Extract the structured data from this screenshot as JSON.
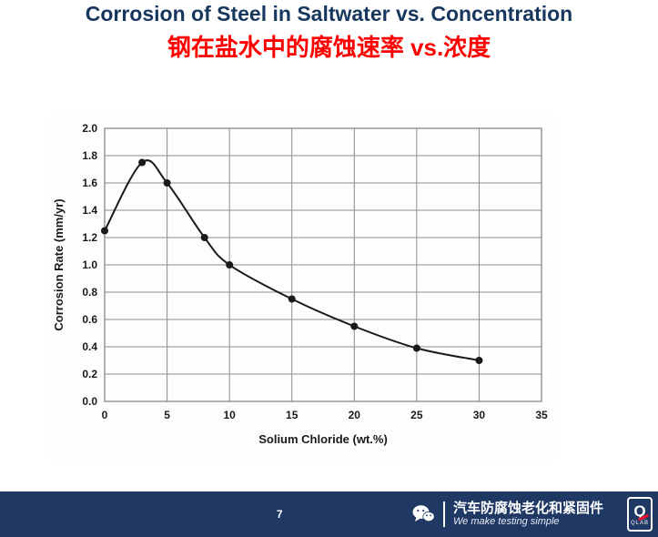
{
  "slide": {
    "title_en": "Corrosion of Steel in Saltwater vs. Concentration",
    "title_zh": "钢在盐水中的腐蚀速率 vs.浓度",
    "page_number": "7",
    "footer": {
      "wechat_account": "汽车防腐蚀老化和紧固件",
      "tagline": "We make testing simple",
      "logo_q": "Q",
      "logo_sub": "QLAB"
    }
  },
  "colors": {
    "title": "#17375e",
    "subtitle": "#ff0000",
    "footer_bg": "#1f3864",
    "footer_text": "#ffffff",
    "accent_red": "#e8112d",
    "grid": "#8c8c8c",
    "plot_border": "#7f7f7f",
    "line": "#1a1a1a"
  },
  "chart_data": {
    "type": "line",
    "x": [
      0,
      3,
      5,
      8,
      10,
      15,
      20,
      25,
      30
    ],
    "y": [
      1.25,
      1.75,
      1.6,
      1.2,
      1.0,
      0.75,
      0.55,
      0.39,
      0.3
    ],
    "title": "",
    "xlabel": "Solium Chloride (wt.%)",
    "ylabel": "Corrosion Rate (mm/yr)",
    "xlim": [
      0,
      35
    ],
    "ylim": [
      0,
      2.0
    ],
    "xticks": [
      0,
      5,
      10,
      15,
      20,
      25,
      30,
      35
    ],
    "yticks": [
      0.0,
      0.2,
      0.4,
      0.6,
      0.8,
      1.0,
      1.2,
      1.4,
      1.6,
      1.8,
      2.0
    ],
    "grid": true,
    "legend": false,
    "marker": "circle"
  }
}
